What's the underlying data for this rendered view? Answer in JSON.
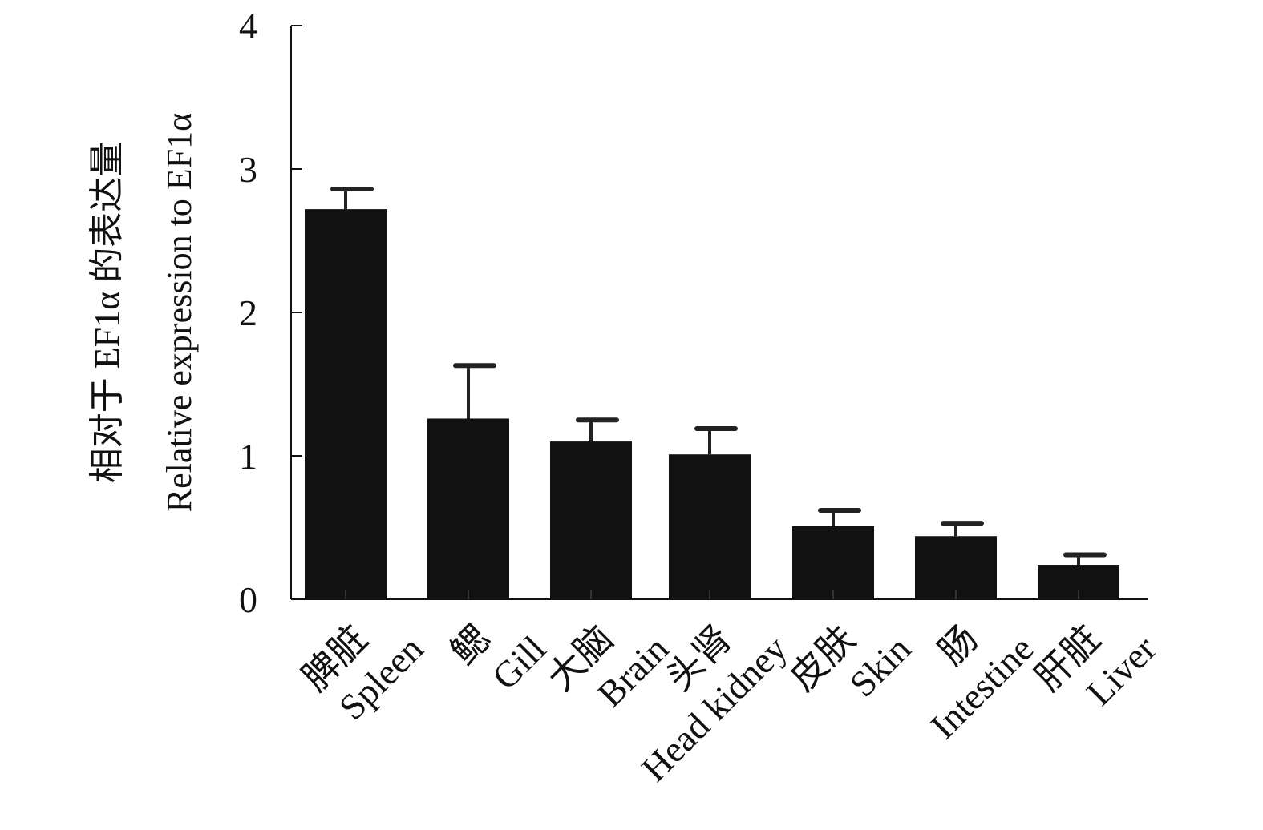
{
  "chart_data": {
    "type": "bar",
    "title": "",
    "ylabel_cn": "相对于 EF1α 的表达量",
    "ylabel": "Relative expression to EF1α",
    "xlabel": "",
    "ylim": [
      0,
      4
    ],
    "yticks": [
      "0",
      "1",
      "2",
      "3",
      "4"
    ],
    "categories_cn": [
      "脾脏",
      "鳃",
      "大脑",
      "头肾",
      "皮肤",
      "肠",
      "肝脏"
    ],
    "categories": [
      "Spleen",
      "Gill",
      "Brain",
      "Head kidney",
      "Skin",
      "Intestine",
      "Liver"
    ],
    "values": [
      2.72,
      1.26,
      1.1,
      1.01,
      0.51,
      0.44,
      0.24
    ],
    "error_upper": [
      2.86,
      1.63,
      1.25,
      1.19,
      0.62,
      0.53,
      0.31
    ],
    "bar_color": "#111111",
    "grid": false
  }
}
